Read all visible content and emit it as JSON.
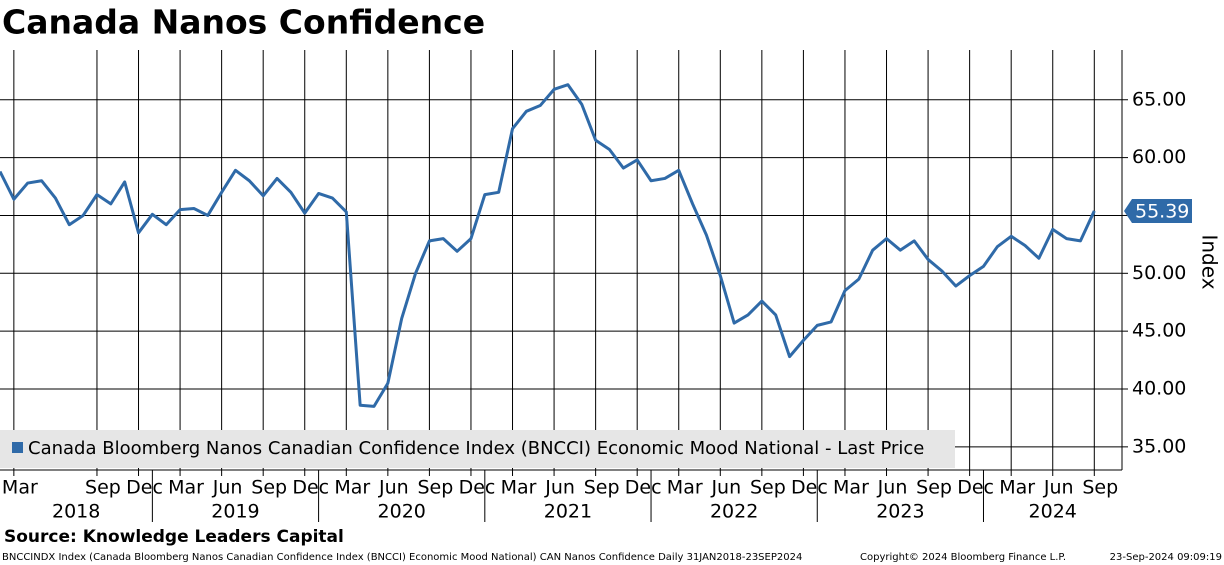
{
  "chart_data": {
    "type": "line",
    "title": "Canada Nanos Confidence",
    "y_axis_label": "Index",
    "source": "Source: Knowledge Leaders Capital",
    "footer_left": "BNCCINDX Index (Canada Bloomberg Nanos Canadian Confidence Index (BNCCI) Economic Mood National) CAN Nanos Confidence  Daily 31JAN2018-23SEP2024",
    "footer_center": "Copyright© 2024 Bloomberg Finance L.P.",
    "footer_right": "23-Sep-2024 09:09:19",
    "x": [
      "2018-02",
      "2018-03",
      "2018-04",
      "2018-05",
      "2018-06",
      "2018-07",
      "2018-08",
      "2018-09",
      "2018-10",
      "2018-11",
      "2018-12",
      "2019-01",
      "2019-02",
      "2019-03",
      "2019-04",
      "2019-05",
      "2019-06",
      "2019-07",
      "2019-08",
      "2019-09",
      "2019-10",
      "2019-11",
      "2019-12",
      "2020-01",
      "2020-02",
      "2020-03",
      "2020-04",
      "2020-05",
      "2020-06",
      "2020-07",
      "2020-08",
      "2020-09",
      "2020-10",
      "2020-11",
      "2020-12",
      "2021-01",
      "2021-02",
      "2021-03",
      "2021-04",
      "2021-05",
      "2021-06",
      "2021-07",
      "2021-08",
      "2021-09",
      "2021-10",
      "2021-11",
      "2021-12",
      "2022-01",
      "2022-02",
      "2022-03",
      "2022-04",
      "2022-05",
      "2022-06",
      "2022-07",
      "2022-08",
      "2022-09",
      "2022-10",
      "2022-11",
      "2022-12",
      "2023-01",
      "2023-02",
      "2023-03",
      "2023-04",
      "2023-05",
      "2023-06",
      "2023-07",
      "2023-08",
      "2023-09",
      "2023-10",
      "2023-11",
      "2023-12",
      "2024-01",
      "2024-02",
      "2024-03",
      "2024-04",
      "2024-05",
      "2024-06",
      "2024-07",
      "2024-08",
      "2024-09"
    ],
    "series": [
      {
        "name": "Canada Bloomberg Nanos Canadian Confidence Index (BNCCI) Economic Mood National - Last Price",
        "color": "#2f6aa8",
        "values": [
          58.8,
          56.4,
          57.8,
          58.0,
          56.5,
          54.2,
          55.0,
          56.8,
          56.0,
          57.9,
          53.5,
          55.1,
          54.2,
          55.5,
          55.6,
          55.0,
          57.0,
          58.9,
          58.0,
          56.7,
          58.2,
          57.0,
          55.2,
          56.9,
          56.5,
          55.3,
          38.6,
          38.5,
          40.5,
          46.1,
          50.0,
          52.8,
          53.0,
          51.9,
          53.0,
          56.8,
          57.0,
          62.5,
          64.0,
          64.5,
          65.9,
          66.3,
          64.6,
          61.5,
          60.7,
          59.1,
          59.8,
          58.0,
          58.2,
          58.9,
          56.0,
          53.3,
          49.8,
          45.7,
          46.4,
          47.6,
          46.4,
          42.8,
          44.2,
          45.5,
          45.8,
          48.5,
          49.5,
          52.0,
          53.0,
          52.0,
          52.8,
          51.2,
          50.2,
          48.9,
          49.8,
          50.6,
          52.3,
          53.2,
          52.4,
          51.3,
          53.8,
          53.0,
          52.8,
          55.39
        ]
      }
    ],
    "xlim": [
      "2018-02",
      "2024-11"
    ],
    "xticks": [
      {
        "value": "2018-03",
        "label": "Mar"
      },
      {
        "value": "2018-09",
        "label": "Sep"
      },
      {
        "value": "2018-12",
        "label": "Dec"
      },
      {
        "value": "2019-03",
        "label": "Mar"
      },
      {
        "value": "2019-06",
        "label": "Jun"
      },
      {
        "value": "2019-09",
        "label": "Sep"
      },
      {
        "value": "2019-12",
        "label": "Dec"
      },
      {
        "value": "2020-03",
        "label": "Mar"
      },
      {
        "value": "2020-06",
        "label": "Jun"
      },
      {
        "value": "2020-09",
        "label": "Sep"
      },
      {
        "value": "2020-12",
        "label": "Dec"
      },
      {
        "value": "2021-03",
        "label": "Mar"
      },
      {
        "value": "2021-06",
        "label": "Jun"
      },
      {
        "value": "2021-09",
        "label": "Sep"
      },
      {
        "value": "2021-12",
        "label": "Dec"
      },
      {
        "value": "2022-03",
        "label": "Mar"
      },
      {
        "value": "2022-06",
        "label": "Jun"
      },
      {
        "value": "2022-09",
        "label": "Sep"
      },
      {
        "value": "2022-12",
        "label": "Dec"
      },
      {
        "value": "2023-03",
        "label": "Mar"
      },
      {
        "value": "2023-06",
        "label": "Jun"
      },
      {
        "value": "2023-09",
        "label": "Sep"
      },
      {
        "value": "2023-12",
        "label": "Dec"
      },
      {
        "value": "2024-03",
        "label": "Mar"
      },
      {
        "value": "2024-06",
        "label": "Jun"
      },
      {
        "value": "2024-09",
        "label": "Sep"
      }
    ],
    "years": [
      2018,
      2019,
      2020,
      2021,
      2022,
      2023,
      2024
    ],
    "ylim": [
      33,
      69.3
    ],
    "yticks": [
      {
        "value": 35,
        "label": "35.00"
      },
      {
        "value": 40,
        "label": "40.00"
      },
      {
        "value": 45,
        "label": "45.00"
      },
      {
        "value": 50,
        "label": "50.00"
      },
      {
        "value": 55,
        "label": "55.00"
      },
      {
        "value": 60,
        "label": "60.00"
      },
      {
        "value": 65,
        "label": "65.00"
      }
    ],
    "grid": true,
    "legend": "bottom-left"
  }
}
